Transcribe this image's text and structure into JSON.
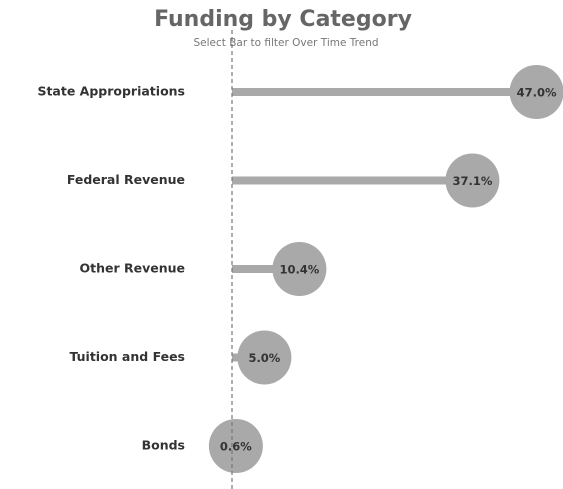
{
  "chart_data": {
    "type": "lollipop",
    "title": "Funding by Category",
    "subtitle": "Select Bar to filter Over Time Trend",
    "categories": [
      "State Appropriations",
      "Federal Revenue",
      "Other Revenue",
      "Tuition and Fees",
      "Bonds"
    ],
    "values": [
      47.0,
      37.1,
      10.4,
      5.0,
      0.6
    ],
    "value_labels": [
      "47.0%",
      "37.1%",
      "10.4%",
      "5.0%",
      "0.6%"
    ],
    "color": "#a9a9a9",
    "xlim": [
      0,
      50
    ]
  }
}
